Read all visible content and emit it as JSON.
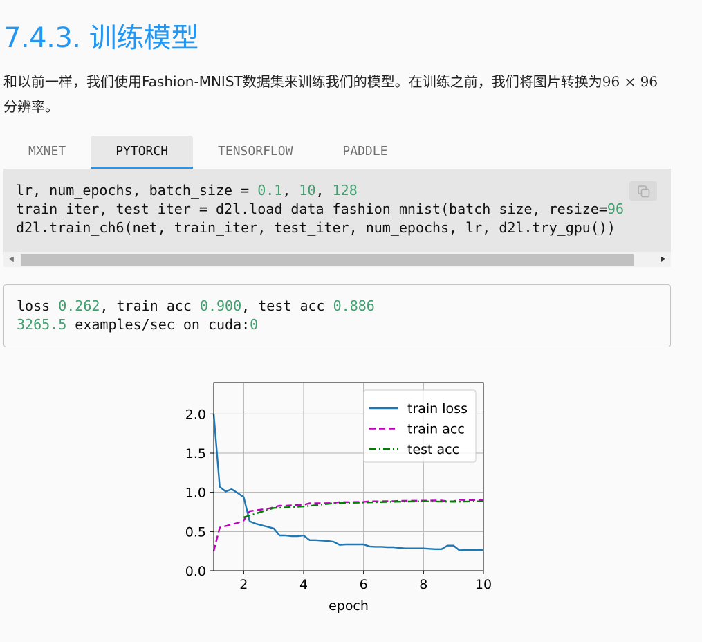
{
  "section": {
    "number": "7.4.3.",
    "title": "训练模型"
  },
  "intro": {
    "text_before": "和以前一样，我们使用Fashion-MNIST数据集来训练我们的模型。在训练之前，我们将图片转换为",
    "math": "96 × 96",
    "text_after": "分辨率。"
  },
  "tabs": [
    {
      "label": "MXNET",
      "active": false
    },
    {
      "label": "PYTORCH",
      "active": true
    },
    {
      "label": "TENSORFLOW",
      "active": false
    },
    {
      "label": "PADDLE",
      "active": false
    }
  ],
  "code": {
    "line1_a": "lr, num_epochs, batch_size = ",
    "line1_n1": "0.1",
    "line1_sep1": ", ",
    "line1_n2": "10",
    "line1_sep2": ", ",
    "line1_n3": "128",
    "line2_a": "train_iter, test_iter = d2l.load_data_fashion_mnist(batch_size, resize=",
    "line2_n": "96",
    "line3": "d2l.train_ch6(net, train_iter, test_iter, num_epochs, lr, d2l.try_gpu())"
  },
  "output": {
    "loss_label": "loss ",
    "loss_value": "0.262",
    "train_label": ", train acc ",
    "train_value": "0.900",
    "test_label": ", test acc ",
    "test_value": "0.886",
    "speed_value": "3265.5",
    "speed_label": " examples/sec on cuda:",
    "device": "0"
  },
  "colors": {
    "accent": "#2196f3",
    "number": "#40a070",
    "train_loss": "#1f77b4",
    "train_acc": "#bf00bf",
    "test_acc": "#008000"
  },
  "chart_data": {
    "type": "line",
    "xlabel": "epoch",
    "ylabel": "",
    "xlim": [
      1,
      10
    ],
    "ylim": [
      0,
      2.4
    ],
    "xticks": [
      2,
      4,
      6,
      8,
      10
    ],
    "yticks": [
      0.0,
      0.5,
      1.0,
      1.5,
      2.0
    ],
    "xtick_labels": [
      "2",
      "4",
      "6",
      "8",
      "10"
    ],
    "ytick_labels": [
      "0.0",
      "0.5",
      "1.0",
      "1.5",
      "2.0"
    ],
    "grid": true,
    "legend_position": "top-right",
    "series": [
      {
        "name": "train loss",
        "style": "solid",
        "color": "#1f77b4",
        "x": [
          1.0,
          1.2,
          1.4,
          1.6,
          1.8,
          2.0,
          2.2,
          2.4,
          2.6,
          2.8,
          3.0,
          3.2,
          3.4,
          3.6,
          3.8,
          4.0,
          4.2,
          4.4,
          4.6,
          4.8,
          5.0,
          5.2,
          5.4,
          5.6,
          5.8,
          6.0,
          6.2,
          6.4,
          6.6,
          6.8,
          7.0,
          7.2,
          7.4,
          7.6,
          7.8,
          8.0,
          8.2,
          8.4,
          8.6,
          8.8,
          9.0,
          9.2,
          9.4,
          9.6,
          9.8,
          10.0
        ],
        "y": [
          2.0,
          1.07,
          1.01,
          1.04,
          0.99,
          0.94,
          0.63,
          0.6,
          0.58,
          0.56,
          0.54,
          0.45,
          0.45,
          0.44,
          0.44,
          0.45,
          0.39,
          0.39,
          0.385,
          0.38,
          0.37,
          0.33,
          0.335,
          0.335,
          0.335,
          0.335,
          0.31,
          0.305,
          0.305,
          0.3,
          0.3,
          0.29,
          0.285,
          0.285,
          0.285,
          0.285,
          0.28,
          0.275,
          0.275,
          0.32,
          0.32,
          0.26,
          0.265,
          0.265,
          0.265,
          0.262
        ]
      },
      {
        "name": "train acc",
        "style": "dashed",
        "color": "#bf00bf",
        "x": [
          1.0,
          1.2,
          1.4,
          1.6,
          1.8,
          2.0,
          2.2,
          2.4,
          2.6,
          2.8,
          3.0,
          3.2,
          3.4,
          3.6,
          3.8,
          4.0,
          4.2,
          4.4,
          4.6,
          4.8,
          5.0,
          5.2,
          5.4,
          5.6,
          5.8,
          6.0,
          6.2,
          6.4,
          6.6,
          6.8,
          7.0,
          7.2,
          7.4,
          7.6,
          7.8,
          8.0,
          8.2,
          8.4,
          8.6,
          8.8,
          9.0,
          9.2,
          9.4,
          9.6,
          9.8,
          10.0
        ],
        "y": [
          0.25,
          0.55,
          0.57,
          0.59,
          0.61,
          0.64,
          0.76,
          0.77,
          0.78,
          0.79,
          0.81,
          0.83,
          0.83,
          0.835,
          0.84,
          0.84,
          0.86,
          0.86,
          0.86,
          0.862,
          0.865,
          0.875,
          0.875,
          0.875,
          0.877,
          0.877,
          0.885,
          0.885,
          0.886,
          0.887,
          0.888,
          0.891,
          0.892,
          0.893,
          0.893,
          0.894,
          0.895,
          0.896,
          0.896,
          0.885,
          0.885,
          0.905,
          0.902,
          0.902,
          0.901,
          0.9
        ]
      },
      {
        "name": "test acc",
        "style": "dashdot",
        "color": "#008000",
        "x": [
          2.0,
          3.0,
          4.0,
          5.0,
          6.0,
          7.0,
          8.0,
          9.0,
          10.0
        ],
        "y": [
          0.68,
          0.8,
          0.82,
          0.86,
          0.87,
          0.88,
          0.885,
          0.88,
          0.886
        ]
      }
    ]
  }
}
